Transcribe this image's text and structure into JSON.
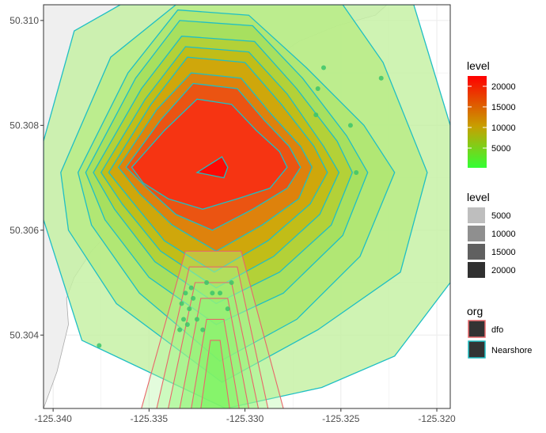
{
  "chart_data": {
    "type": "contour",
    "xlim": [
      -125.3405,
      -125.3193
    ],
    "ylim": [
      50.3026,
      50.3103
    ],
    "x_ticks": [
      {
        "value": -125.34,
        "label": "-125.340"
      },
      {
        "value": -125.335,
        "label": "-125.335"
      },
      {
        "value": -125.33,
        "label": "-125.330"
      },
      {
        "value": -125.325,
        "label": "-125.325"
      },
      {
        "value": -125.32,
        "label": "-125.320"
      }
    ],
    "y_ticks": [
      {
        "value": 50.304,
        "label": "50.304"
      },
      {
        "value": 50.306,
        "label": "50.306"
      },
      {
        "value": 50.308,
        "label": "50.308"
      },
      {
        "value": 50.31,
        "label": "50.310"
      }
    ],
    "grid": true,
    "legend_position": "right",
    "colors": {
      "panel_background": "#ffffff",
      "grid": "#ebebeb",
      "land": "#efefef",
      "coast": "#aaaaaa",
      "nearshore_outline": "#1fbfc4",
      "dfo_outline": "#e8676a",
      "point": "#3cc46a",
      "gradient_low": "#33ff33",
      "gradient_mid": "#c7a000",
      "gradient_high": "#ff0000"
    },
    "land": [
      [
        [
          -125.3405,
          50.3103
        ],
        [
          -125.3226,
          50.3103
        ],
        [
          -125.3232,
          50.3101
        ],
        [
          -125.3252,
          50.3099
        ],
        [
          -125.3272,
          50.3096
        ],
        [
          -125.3296,
          50.309
        ],
        [
          -125.3312,
          50.3087
        ],
        [
          -125.3327,
          50.308
        ],
        [
          -125.3355,
          50.3066
        ],
        [
          -125.337,
          50.306
        ],
        [
          -125.338,
          50.3056
        ],
        [
          -125.3389,
          50.3051
        ],
        [
          -125.3393,
          50.3047
        ],
        [
          -125.3392,
          50.3042
        ],
        [
          -125.3398,
          50.3033
        ],
        [
          -125.3402,
          50.3029
        ],
        [
          -125.3405,
          50.3026
        ]
      ]
    ],
    "nearshore_levels": [
      {
        "level": 2000,
        "fill": "#c4f0a2",
        "path": [
          [
            -125.3405,
            50.3077
          ],
          [
            -125.3389,
            50.3098
          ],
          [
            -125.3365,
            50.3103
          ],
          [
            -125.3212,
            50.3103
          ],
          [
            -125.3193,
            50.308
          ],
          [
            -125.3193,
            50.305
          ],
          [
            -125.3222,
            50.3036
          ],
          [
            -125.326,
            50.303
          ],
          [
            -125.331,
            50.3026
          ],
          [
            -125.3385,
            50.3039
          ],
          [
            -125.3405,
            50.3062
          ]
        ]
      },
      {
        "level": 4000,
        "fill": "#b8ec86",
        "path": [
          [
            -125.3396,
            50.3071
          ],
          [
            -125.337,
            50.3093
          ],
          [
            -125.3336,
            50.3103
          ],
          [
            -125.3249,
            50.3103
          ],
          [
            -125.3228,
            50.3092
          ],
          [
            -125.3205,
            50.3071
          ],
          [
            -125.3219,
            50.3052
          ],
          [
            -125.3262,
            50.3041
          ],
          [
            -125.3312,
            50.3031
          ],
          [
            -125.3367,
            50.3046
          ],
          [
            -125.3392,
            50.306
          ]
        ]
      },
      {
        "level": 6000,
        "fill": "#aee56e",
        "path": [
          [
            -125.3387,
            50.3071
          ],
          [
            -125.3361,
            50.309
          ],
          [
            -125.3335,
            50.3102
          ],
          [
            -125.3298,
            50.3101
          ],
          [
            -125.3268,
            50.3091
          ],
          [
            -125.3238,
            50.308
          ],
          [
            -125.3222,
            50.3071
          ],
          [
            -125.324,
            50.3055
          ],
          [
            -125.3273,
            50.3043
          ],
          [
            -125.3313,
            50.3035
          ],
          [
            -125.3355,
            50.3048
          ],
          [
            -125.338,
            50.3061
          ]
        ]
      },
      {
        "level": 8000,
        "fill": "#a5de5a",
        "path": [
          [
            -125.3383,
            50.3071
          ],
          [
            -125.3357,
            50.3089
          ],
          [
            -125.3334,
            50.31
          ],
          [
            -125.3296,
            50.3099
          ],
          [
            -125.327,
            50.3089
          ],
          [
            -125.3247,
            50.3078
          ],
          [
            -125.3236,
            50.3071
          ],
          [
            -125.3249,
            50.3059
          ],
          [
            -125.328,
            50.3048
          ],
          [
            -125.3315,
            50.3042
          ],
          [
            -125.335,
            50.3051
          ],
          [
            -125.3373,
            50.3062
          ]
        ]
      },
      {
        "level": 10000,
        "fill": "#b6cd30",
        "path": [
          [
            -125.3379,
            50.3071
          ],
          [
            -125.3354,
            50.3087
          ],
          [
            -125.3333,
            50.3097
          ],
          [
            -125.3295,
            50.3096
          ],
          [
            -125.3273,
            50.3087
          ],
          [
            -125.3252,
            50.3077
          ],
          [
            -125.3244,
            50.3071
          ],
          [
            -125.3255,
            50.3061
          ],
          [
            -125.3282,
            50.3052
          ],
          [
            -125.3315,
            50.3046
          ],
          [
            -125.3347,
            50.3054
          ],
          [
            -125.3368,
            50.3064
          ]
        ]
      },
      {
        "level": 12000,
        "fill": "#c4b811",
        "path": [
          [
            -125.3375,
            50.3071
          ],
          [
            -125.3352,
            50.3085
          ],
          [
            -125.3331,
            50.3095
          ],
          [
            -125.3298,
            50.3094
          ],
          [
            -125.3278,
            50.3086
          ],
          [
            -125.3259,
            50.3076
          ],
          [
            -125.3251,
            50.3071
          ],
          [
            -125.3261,
            50.3063
          ],
          [
            -125.3285,
            50.3055
          ],
          [
            -125.3315,
            50.3049
          ],
          [
            -125.3344,
            50.3056
          ],
          [
            -125.3364,
            50.3065
          ]
        ]
      },
      {
        "level": 14000,
        "fill": "#d2a208",
        "path": [
          [
            -125.3371,
            50.3071
          ],
          [
            -125.3349,
            50.3084
          ],
          [
            -125.333,
            50.3093
          ],
          [
            -125.33,
            50.3092
          ],
          [
            -125.3281,
            50.3084
          ],
          [
            -125.3264,
            50.3076
          ],
          [
            -125.3257,
            50.3071
          ],
          [
            -125.3266,
            50.3065
          ],
          [
            -125.3288,
            50.3058
          ],
          [
            -125.3316,
            50.3052
          ],
          [
            -125.3342,
            50.3058
          ],
          [
            -125.336,
            50.3066
          ]
        ]
      },
      {
        "level": 16000,
        "fill": "#e07a0c",
        "path": [
          [
            -125.3366,
            50.3072
          ],
          [
            -125.3346,
            50.3083
          ],
          [
            -125.3328,
            50.309
          ],
          [
            -125.3302,
            50.3089
          ],
          [
            -125.3286,
            50.3082
          ],
          [
            -125.3271,
            50.3076
          ],
          [
            -125.3265,
            50.3072
          ],
          [
            -125.3272,
            50.3066
          ],
          [
            -125.3291,
            50.3061
          ],
          [
            -125.3315,
            50.3056
          ],
          [
            -125.3338,
            50.3061
          ],
          [
            -125.3355,
            50.3067
          ]
        ]
      },
      {
        "level": 18000,
        "fill": "#ee4a14",
        "path": [
          [
            -125.3362,
            50.3072
          ],
          [
            -125.3344,
            50.3081
          ],
          [
            -125.3327,
            50.3088
          ],
          [
            -125.3304,
            50.3087
          ],
          [
            -125.329,
            50.3081
          ],
          [
            -125.3277,
            50.3076
          ],
          [
            -125.3271,
            50.3072
          ],
          [
            -125.3278,
            50.3068
          ],
          [
            -125.3296,
            50.3064
          ],
          [
            -125.3317,
            50.306
          ],
          [
            -125.3336,
            50.3063
          ],
          [
            -125.3351,
            50.3068
          ]
        ]
      },
      {
        "level": 20000,
        "fill": "#f82d12",
        "path": [
          [
            -125.3359,
            50.3072
          ],
          [
            -125.3342,
            50.3079
          ],
          [
            -125.3325,
            50.3085
          ],
          [
            -125.3307,
            50.3084
          ],
          [
            -125.3294,
            50.3079
          ],
          [
            -125.3282,
            50.3075
          ],
          [
            -125.3278,
            50.3072
          ],
          [
            -125.3287,
            50.3068
          ],
          [
            -125.3304,
            50.3066
          ],
          [
            -125.3322,
            50.3064
          ],
          [
            -125.334,
            50.3066
          ],
          [
            -125.3353,
            50.3069
          ]
        ]
      },
      {
        "level": 22000,
        "fill": "#ff0000",
        "path": [
          [
            -125.3325,
            50.3071
          ],
          [
            -125.3312,
            50.3074
          ],
          [
            -125.3309,
            50.3072
          ],
          [
            -125.3311,
            50.307
          ]
        ]
      }
    ],
    "dfo_levels": [
      {
        "level": 2000,
        "fill": "#b0f59a",
        "path": [
          [
            -125.3331,
            50.3056
          ],
          [
            -125.3302,
            50.3056
          ],
          [
            -125.328,
            50.3026
          ],
          [
            -125.3354,
            50.3026
          ]
        ]
      },
      {
        "level": 4000,
        "fill": "#a3f58a",
        "path": [
          [
            -125.3329,
            50.3053
          ],
          [
            -125.3304,
            50.3053
          ],
          [
            -125.3288,
            50.3026
          ],
          [
            -125.3346,
            50.3026
          ]
        ]
      },
      {
        "level": 6000,
        "fill": "#96f47b",
        "path": [
          [
            -125.3326,
            50.305
          ],
          [
            -125.3307,
            50.305
          ],
          [
            -125.3293,
            50.3026
          ],
          [
            -125.334,
            50.3026
          ]
        ]
      },
      {
        "level": 8000,
        "fill": "#89f46d",
        "path": [
          [
            -125.3323,
            50.3047
          ],
          [
            -125.3309,
            50.3047
          ],
          [
            -125.3298,
            50.3026
          ],
          [
            -125.3334,
            50.3026
          ]
        ]
      },
      {
        "level": 10000,
        "fill": "#7cf460",
        "path": [
          [
            -125.332,
            50.3043
          ],
          [
            -125.3311,
            50.3043
          ],
          [
            -125.3303,
            50.3026
          ],
          [
            -125.3328,
            50.3026
          ]
        ]
      },
      {
        "level": 12000,
        "fill": "#70f354",
        "path": [
          [
            -125.3318,
            50.3039
          ],
          [
            -125.3313,
            50.3039
          ],
          [
            -125.3308,
            50.3026
          ],
          [
            -125.3323,
            50.3026
          ]
        ]
      }
    ],
    "points": [
      {
        "x": -125.3331,
        "y": 50.3048
      },
      {
        "x": -125.3327,
        "y": 50.3047
      },
      {
        "x": -125.3329,
        "y": 50.3045
      },
      {
        "x": -125.3333,
        "y": 50.3046
      },
      {
        "x": -125.3325,
        "y": 50.3043
      },
      {
        "x": -125.333,
        "y": 50.3042
      },
      {
        "x": -125.3334,
        "y": 50.3041
      },
      {
        "x": -125.3328,
        "y": 50.3049
      },
      {
        "x": -125.3332,
        "y": 50.3043
      },
      {
        "x": -125.332,
        "y": 50.305
      },
      {
        "x": -125.3317,
        "y": 50.3048
      },
      {
        "x": -125.3313,
        "y": 50.3048
      },
      {
        "x": -125.3322,
        "y": 50.3041
      },
      {
        "x": -125.3307,
        "y": 50.305
      },
      {
        "x": -125.3309,
        "y": 50.3045
      },
      {
        "x": -125.3262,
        "y": 50.3087
      },
      {
        "x": -125.3259,
        "y": 50.3091
      },
      {
        "x": -125.3263,
        "y": 50.3082
      },
      {
        "x": -125.3245,
        "y": 50.308
      },
      {
        "x": -125.3229,
        "y": 50.3089
      },
      {
        "x": -125.3242,
        "y": 50.3071
      },
      {
        "x": -125.3376,
        "y": 50.3038
      }
    ],
    "legend": {
      "fill_title": "level",
      "fill_labels": [
        "20000",
        "15000",
        "10000",
        "5000"
      ],
      "fill_label_values": [
        20000,
        15000,
        10000,
        5000
      ],
      "fill_range": [
        200,
        22500
      ],
      "alpha_title": "level",
      "alpha_entries": [
        {
          "label": "5000",
          "color": "#bebebe"
        },
        {
          "label": "10000",
          "color": "#8f8f8f"
        },
        {
          "label": "15000",
          "color": "#606060"
        },
        {
          "label": "20000",
          "color": "#303030"
        }
      ],
      "org_title": "org",
      "org_entries": [
        {
          "label": "dfo",
          "outline": "#e8676a"
        },
        {
          "label": "Nearshore",
          "outline": "#1fbfc4"
        }
      ]
    }
  }
}
